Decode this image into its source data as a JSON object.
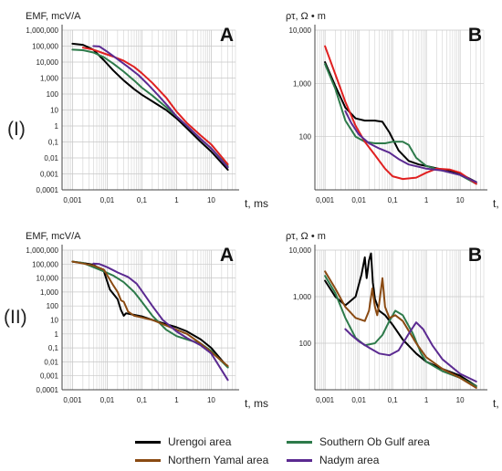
{
  "row_labels": [
    "(I)",
    "(II)"
  ],
  "colors": {
    "urengoi": "#000000",
    "southern_ob": "#2d7a4a",
    "northern_yamal": "#8a4a12",
    "nadym": "#5b2a91",
    "red": "#e02020"
  },
  "legend": [
    {
      "label": "Urengoi area",
      "color": "#000000"
    },
    {
      "label": "Southern Ob Gulf area",
      "color": "#2d7a4a"
    },
    {
      "label": "Northern Yamal area",
      "color": "#8a4a12"
    },
    {
      "label": "Nadym area",
      "color": "#5b2a91"
    }
  ],
  "chart_data": [
    {
      "type": "line",
      "panel_letter": "A",
      "ylabel": "EMF, mcV/A",
      "xlabel": "t, ms",
      "xscale": "log",
      "yscale": "log",
      "xlim": [
        0.0005,
        50
      ],
      "ylim": [
        0.0001,
        1000000
      ],
      "xticks": [
        "0,001",
        "0,01",
        "0,1",
        "1",
        "10"
      ],
      "yticks": [
        "1,000,000",
        "100,000",
        "10,000",
        "1,000",
        "100",
        "10",
        "1",
        "0,1",
        "0,01",
        "0,001",
        "0,0001"
      ],
      "grid": true,
      "series": [
        {
          "key": "urengoi",
          "x": [
            0.001,
            0.002,
            0.004,
            0.008,
            0.015,
            0.03,
            0.06,
            0.1,
            0.2,
            0.5,
            1,
            2,
            5,
            10,
            30
          ],
          "y": [
            140000,
            120000,
            60000,
            13000,
            3000,
            700,
            200,
            90,
            35,
            10,
            3,
            0.7,
            0.1,
            0.025,
            0.0018
          ]
        },
        {
          "key": "southern_ob",
          "x": [
            0.001,
            0.002,
            0.004,
            0.008,
            0.015,
            0.03,
            0.06,
            0.1,
            0.2,
            0.5,
            1,
            2,
            5,
            10,
            30
          ],
          "y": [
            60000,
            55000,
            40000,
            20000,
            8000,
            2500,
            700,
            250,
            80,
            15,
            4,
            1,
            0.15,
            0.04,
            0.003
          ]
        },
        {
          "key": "red",
          "x": [
            0.002,
            0.004,
            0.008,
            0.015,
            0.03,
            0.06,
            0.1,
            0.2,
            0.5,
            1,
            2,
            5,
            10,
            30
          ],
          "y": [
            80000,
            60000,
            35000,
            22000,
            12000,
            5000,
            2000,
            500,
            60,
            8,
            1.5,
            0.25,
            0.07,
            0.004
          ]
        },
        {
          "key": "nadym",
          "x": [
            0.004,
            0.006,
            0.01,
            0.02,
            0.04,
            0.08,
            0.15,
            0.3,
            0.6,
            1,
            2,
            5,
            10,
            30
          ],
          "y": [
            100000,
            95000,
            45000,
            15000,
            5000,
            1500,
            400,
            80,
            15,
            4,
            1,
            0.15,
            0.04,
            0.0025
          ]
        }
      ]
    },
    {
      "type": "line",
      "panel_letter": "B",
      "ylabel": "ρτ, Ω • m",
      "xlabel": "t, ms",
      "xscale": "log",
      "yscale": "log",
      "xlim": [
        0.0005,
        50
      ],
      "ylim": [
        10,
        10000
      ],
      "xticks": [
        "0,001",
        "0,01",
        "0,1",
        "1",
        "10"
      ],
      "yticks": [
        "10,000",
        "1,000",
        "100"
      ],
      "grid": true,
      "series": [
        {
          "key": "urengoi",
          "x": [
            0.001,
            0.002,
            0.004,
            0.008,
            0.015,
            0.03,
            0.05,
            0.08,
            0.15,
            0.3,
            0.6,
            1,
            3,
            10,
            30
          ],
          "y": [
            2500,
            900,
            350,
            220,
            200,
            200,
            190,
            120,
            55,
            35,
            30,
            28,
            24,
            20,
            14
          ]
        },
        {
          "key": "southern_ob",
          "x": [
            0.001,
            0.002,
            0.004,
            0.008,
            0.015,
            0.03,
            0.06,
            0.1,
            0.2,
            0.3,
            0.5,
            1,
            3,
            10,
            30
          ],
          "y": [
            2300,
            800,
            200,
            100,
            80,
            75,
            75,
            80,
            80,
            70,
            40,
            28,
            23,
            19,
            13
          ]
        },
        {
          "key": "red",
          "x": [
            0.001,
            0.002,
            0.004,
            0.008,
            0.015,
            0.03,
            0.06,
            0.1,
            0.2,
            0.5,
            1,
            2,
            5,
            10,
            30
          ],
          "y": [
            5000,
            1500,
            450,
            160,
            80,
            45,
            25,
            18,
            16,
            17,
            21,
            25,
            24,
            21,
            13
          ]
        },
        {
          "key": "nadym",
          "x": [
            0.004,
            0.006,
            0.01,
            0.02,
            0.04,
            0.08,
            0.15,
            0.3,
            0.6,
            1,
            3,
            10,
            30
          ],
          "y": [
            300,
            180,
            110,
            75,
            60,
            50,
            38,
            30,
            27,
            25,
            23,
            19,
            14
          ]
        }
      ]
    },
    {
      "type": "line",
      "panel_letter": "A",
      "ylabel": "EMF, mcV/A",
      "xlabel": "t, ms",
      "xscale": "log",
      "yscale": "log",
      "xlim": [
        0.0005,
        50
      ],
      "ylim": [
        0.0001,
        1000000
      ],
      "xticks": [
        "0,001",
        "0,01",
        "0,1",
        "1",
        "10"
      ],
      "yticks": [
        "1,000,000",
        "100,000",
        "10,000",
        "1,000",
        "100",
        "10",
        "1",
        "0,1",
        "0,01",
        "0,001",
        "0,0001"
      ],
      "grid": true,
      "series": [
        {
          "key": "urengoi",
          "x": [
            0.001,
            0.002,
            0.004,
            0.008,
            0.012,
            0.02,
            0.025,
            0.03,
            0.035,
            0.05,
            0.1,
            0.2,
            0.5,
            1,
            2,
            5,
            10,
            30
          ],
          "y": [
            150000,
            120000,
            90000,
            30000,
            1500,
            300,
            50,
            20,
            30,
            25,
            18,
            10,
            5,
            3,
            1.5,
            0.4,
            0.1,
            0.004
          ]
        },
        {
          "key": "southern_ob",
          "x": [
            0.001,
            0.002,
            0.004,
            0.008,
            0.015,
            0.03,
            0.06,
            0.1,
            0.2,
            0.5,
            1,
            2,
            5,
            10,
            30
          ],
          "y": [
            150000,
            120000,
            60000,
            30000,
            15000,
            5000,
            1000,
            200,
            20,
            2,
            0.7,
            0.4,
            0.2,
            0.06,
            0.004
          ]
        },
        {
          "key": "northern_yamal",
          "x": [
            0.001,
            0.002,
            0.004,
            0.008,
            0.015,
            0.02,
            0.025,
            0.03,
            0.04,
            0.06,
            0.1,
            0.2,
            0.5,
            1,
            2,
            5,
            10,
            30
          ],
          "y": [
            150000,
            110000,
            80000,
            40000,
            3000,
            1000,
            250,
            200,
            40,
            20,
            15,
            10,
            4,
            2,
            1,
            0.2,
            0.05,
            0.005
          ]
        },
        {
          "key": "nadym",
          "x": [
            0.004,
            0.006,
            0.01,
            0.02,
            0.04,
            0.07,
            0.1,
            0.2,
            0.4,
            1,
            2,
            5,
            10,
            30
          ],
          "y": [
            110000,
            100000,
            60000,
            25000,
            12000,
            4000,
            1200,
            100,
            10,
            1.5,
            0.5,
            0.15,
            0.04,
            0.0005
          ]
        }
      ]
    },
    {
      "type": "line",
      "panel_letter": "B",
      "ylabel": "ρτ, Ω • m",
      "xlabel": "t, ms",
      "xscale": "log",
      "yscale": "log",
      "xlim": [
        0.0005,
        50
      ],
      "ylim": [
        10,
        10000
      ],
      "xticks": [
        "0,001",
        "0,01",
        "0,1",
        "1",
        "10"
      ],
      "yticks": [
        "10,000",
        "1,000",
        "100"
      ],
      "grid": true,
      "series": [
        {
          "key": "urengoi",
          "x": [
            0.001,
            0.002,
            0.004,
            0.008,
            0.012,
            0.015,
            0.017,
            0.02,
            0.023,
            0.026,
            0.03,
            0.04,
            0.06,
            0.1,
            0.2,
            0.5,
            1,
            3,
            10,
            30
          ],
          "y": [
            2200,
            1000,
            650,
            1000,
            3000,
            7000,
            2500,
            6000,
            8500,
            2000,
            900,
            500,
            400,
            250,
            120,
            60,
            40,
            28,
            20,
            12
          ]
        },
        {
          "key": "southern_ob",
          "x": [
            0.001,
            0.002,
            0.004,
            0.008,
            0.015,
            0.03,
            0.05,
            0.08,
            0.12,
            0.2,
            0.4,
            0.7,
            1,
            3,
            10,
            30
          ],
          "y": [
            2800,
            1200,
            350,
            130,
            90,
            100,
            150,
            300,
            500,
            400,
            160,
            60,
            40,
            25,
            18,
            12
          ]
        },
        {
          "key": "northern_yamal",
          "x": [
            0.001,
            0.002,
            0.004,
            0.008,
            0.015,
            0.02,
            0.025,
            0.03,
            0.035,
            0.04,
            0.05,
            0.06,
            0.08,
            0.12,
            0.2,
            0.5,
            1,
            3,
            10,
            30
          ],
          "y": [
            3500,
            1500,
            600,
            350,
            300,
            500,
            1500,
            600,
            400,
            700,
            2500,
            600,
            350,
            400,
            300,
            100,
            50,
            28,
            18,
            11
          ]
        },
        {
          "key": "nadym",
          "x": [
            0.004,
            0.006,
            0.01,
            0.02,
            0.04,
            0.08,
            0.15,
            0.3,
            0.5,
            0.8,
            1.5,
            3,
            10,
            30
          ],
          "y": [
            200,
            150,
            110,
            80,
            60,
            55,
            70,
            160,
            280,
            200,
            90,
            45,
            22,
            15
          ]
        }
      ]
    }
  ]
}
